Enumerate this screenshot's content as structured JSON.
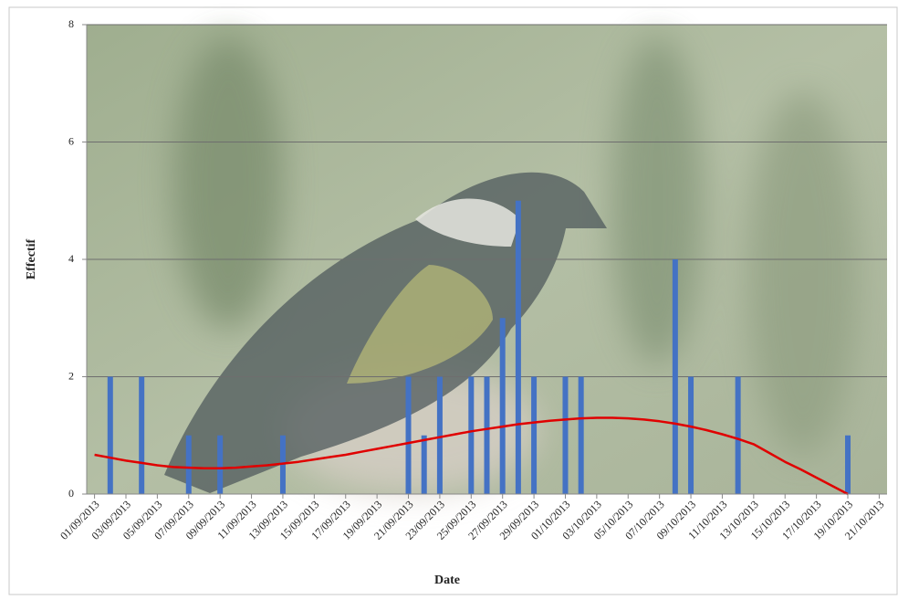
{
  "chart_data": {
    "type": "bar",
    "xlabel": "Date",
    "ylabel": "Effectif",
    "categories": [
      "01/09/2013",
      null,
      "03/09/2013",
      null,
      "05/09/2013",
      null,
      "07/09/2013",
      null,
      "09/09/2013",
      null,
      "11/09/2013",
      null,
      "13/09/2013",
      null,
      "15/09/2013",
      null,
      "17/09/2013",
      null,
      "19/09/2013",
      null,
      "21/09/2013",
      null,
      "23/09/2013",
      null,
      "25/09/2013",
      null,
      "27/09/2013",
      null,
      "29/09/2013",
      null,
      "01/10/2013",
      null,
      "03/10/2013",
      null,
      "05/10/2013",
      null,
      "07/10/2013",
      null,
      "09/10/2013",
      null,
      "11/10/2013",
      null,
      "13/10/2013",
      null,
      "15/10/2013",
      null,
      "17/10/2013",
      null,
      "19/10/2013",
      null,
      "21/10/2013"
    ],
    "series": [
      {
        "type": "bar",
        "color": "#4472c4",
        "values": [
          null,
          2,
          null,
          2,
          null,
          null,
          1,
          null,
          1,
          null,
          null,
          null,
          1,
          null,
          null,
          null,
          null,
          null,
          null,
          null,
          2,
          1,
          2,
          null,
          2,
          2,
          3,
          5,
          2,
          null,
          2,
          2,
          null,
          null,
          null,
          null,
          null,
          4,
          2,
          null,
          null,
          2,
          null,
          null,
          null,
          null,
          null,
          null,
          1,
          null,
          null
        ]
      },
      {
        "type": "line",
        "color": "#e00000",
        "values": [
          0.67,
          0.62,
          0.57,
          0.53,
          0.49,
          0.46,
          0.45,
          0.44,
          0.44,
          0.45,
          0.47,
          0.49,
          0.52,
          0.55,
          0.59,
          0.63,
          0.67,
          0.72,
          0.77,
          0.82,
          0.87,
          0.92,
          0.97,
          1.02,
          1.07,
          1.11,
          1.15,
          1.19,
          1.22,
          1.25,
          1.27,
          1.29,
          1.3,
          1.3,
          1.29,
          1.27,
          1.24,
          1.2,
          1.15,
          1.09,
          1.02,
          0.94,
          0.85,
          0.7,
          0.55,
          0.42,
          0.28,
          0.14,
          0,
          null,
          null
        ]
      }
    ],
    "ylim": [
      0,
      8
    ],
    "yticks": [
      0,
      2,
      4,
      6,
      8
    ],
    "grid": true
  }
}
